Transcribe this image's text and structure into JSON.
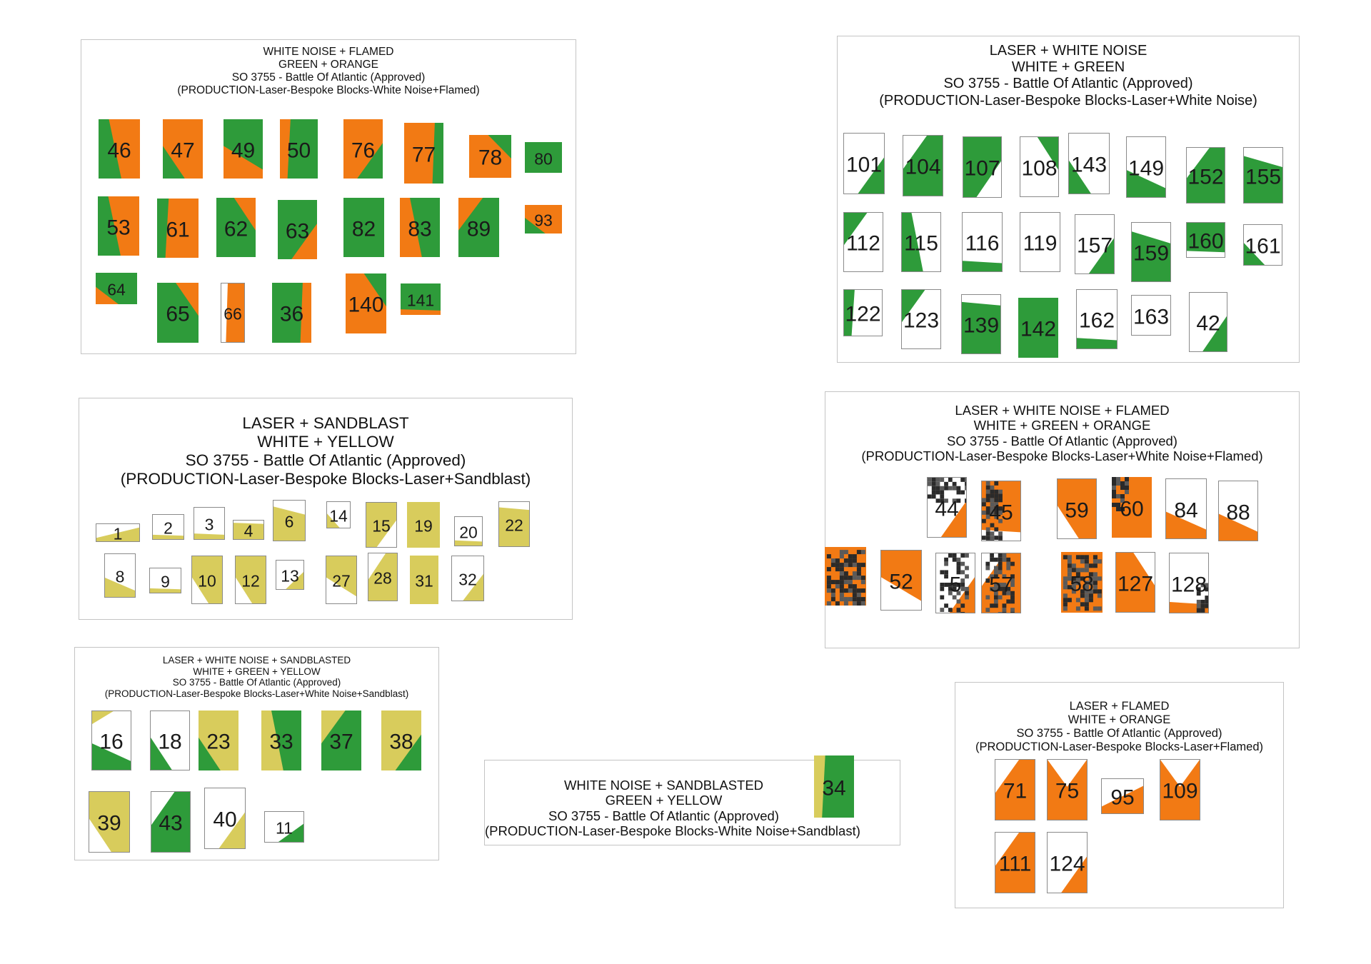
{
  "colors": {
    "green": "#2e9b3a",
    "orange": "#f27a14",
    "yellow": "#d8cc5c",
    "white": "#ffffff",
    "dark": "#2a2a2a"
  },
  "panels": [
    {
      "key": "wn_flamed",
      "title_lines": [
        "WHITE NOISE + FLAMED",
        "GREEN + ORANGE",
        "SO 3755 - Battle Of Atlantic (Approved)",
        "(PRODUCTION-Laser-Bespoke Blocks-White Noise+Flamed)"
      ],
      "blocks": [
        {
          "label": "46",
          "base": "green",
          "accent": "orange",
          "pattern": "diag-right"
        },
        {
          "label": "47",
          "base": "orange",
          "accent": "green",
          "pattern": "corner-bl"
        },
        {
          "label": "49",
          "base": "green",
          "accent": "orange",
          "pattern": "diag-left"
        },
        {
          "label": "50",
          "base": "green",
          "accent": "orange",
          "pattern": "strip-left"
        },
        {
          "label": "76",
          "base": "orange",
          "accent": "green",
          "pattern": "corner-br"
        },
        {
          "label": "77",
          "base": "orange",
          "accent": "green",
          "pattern": "strip-right"
        },
        {
          "label": "78",
          "base": "orange",
          "accent": "green",
          "pattern": "corner-tr"
        },
        {
          "label": "80",
          "base": "green",
          "accent": "green",
          "pattern": "solid"
        },
        {
          "label": "53",
          "base": "green",
          "accent": "orange",
          "pattern": "diag-right"
        },
        {
          "label": "61",
          "base": "orange",
          "accent": "green",
          "pattern": "strip-left"
        },
        {
          "label": "62",
          "base": "green",
          "accent": "orange",
          "pattern": "corner-tr"
        },
        {
          "label": "63",
          "base": "green",
          "accent": "orange",
          "pattern": "corner-br"
        },
        {
          "label": "82",
          "base": "green",
          "accent": "green",
          "pattern": "solid"
        },
        {
          "label": "83",
          "base": "orange",
          "accent": "green",
          "pattern": "diag-right"
        },
        {
          "label": "89",
          "base": "green",
          "accent": "orange",
          "pattern": "corner-tl"
        },
        {
          "label": "93",
          "base": "orange",
          "accent": "green",
          "pattern": "corner-bl"
        },
        {
          "label": "64",
          "base": "green",
          "accent": "orange",
          "pattern": "corner-bl"
        },
        {
          "label": "65",
          "base": "green",
          "accent": "orange",
          "pattern": "corner-tr"
        },
        {
          "label": "66",
          "base": "orange",
          "accent": "white",
          "pattern": "strip-left"
        },
        {
          "label": "36",
          "base": "green",
          "accent": "orange",
          "pattern": "strip-right"
        },
        {
          "label": "140",
          "base": "orange",
          "accent": "green",
          "pattern": "corner-tr"
        },
        {
          "label": "141",
          "base": "green",
          "accent": "orange",
          "pattern": "strip-bottom"
        }
      ]
    },
    {
      "key": "laser_wn",
      "title_lines": [
        "LASER + WHITE NOISE",
        "WHITE + GREEN",
        "SO 3755 - Battle Of Atlantic (Approved)",
        "(PRODUCTION-Laser-Bespoke Blocks-Laser+White Noise)"
      ],
      "blocks": [
        {
          "label": "101",
          "base": "white",
          "accent": "green",
          "pattern": "corner-br"
        },
        {
          "label": "104",
          "base": "green",
          "accent": "white",
          "pattern": "corner-tl"
        },
        {
          "label": "107",
          "base": "green",
          "accent": "white",
          "pattern": "corner-br"
        },
        {
          "label": "108",
          "base": "white",
          "accent": "green",
          "pattern": "corner-tr"
        },
        {
          "label": "143",
          "base": "white",
          "accent": "green",
          "pattern": "corner-bl"
        },
        {
          "label": "149",
          "base": "white",
          "accent": "green",
          "pattern": "diag-bottom"
        },
        {
          "label": "152",
          "base": "green",
          "accent": "white",
          "pattern": "corner-tl"
        },
        {
          "label": "155",
          "base": "green",
          "accent": "white",
          "pattern": "diag-top"
        },
        {
          "label": "112",
          "base": "white",
          "accent": "green",
          "pattern": "corner-tl"
        },
        {
          "label": "115",
          "base": "green",
          "accent": "white",
          "pattern": "diag-right"
        },
        {
          "label": "116",
          "base": "white",
          "accent": "green",
          "pattern": "strip-bottom"
        },
        {
          "label": "119",
          "base": "white",
          "accent": "white",
          "pattern": "solid"
        },
        {
          "label": "157",
          "base": "white",
          "accent": "green",
          "pattern": "corner-br"
        },
        {
          "label": "159",
          "base": "green",
          "accent": "white",
          "pattern": "diag-top"
        },
        {
          "label": "160",
          "base": "green",
          "accent": "white",
          "pattern": "strip-bottom"
        },
        {
          "label": "161",
          "base": "white",
          "accent": "green",
          "pattern": "corner-bl"
        },
        {
          "label": "122",
          "base": "white",
          "accent": "green",
          "pattern": "strip-left"
        },
        {
          "label": "123",
          "base": "white",
          "accent": "green",
          "pattern": "corner-tl"
        },
        {
          "label": "139",
          "base": "green",
          "accent": "white",
          "pattern": "strip-top"
        },
        {
          "label": "142",
          "base": "green",
          "accent": "green",
          "pattern": "solid"
        },
        {
          "label": "162",
          "base": "white",
          "accent": "green",
          "pattern": "strip-bottom"
        },
        {
          "label": "163",
          "base": "white",
          "accent": "white",
          "pattern": "solid"
        },
        {
          "label": "42",
          "base": "white",
          "accent": "green",
          "pattern": "corner-br"
        }
      ]
    },
    {
      "key": "laser_sandblast",
      "title_lines": [
        "LASER + SANDBLAST",
        "WHITE + YELLOW",
        "SO 3755 - Battle Of Atlantic (Approved)",
        "(PRODUCTION-Laser-Bespoke Blocks-Laser+Sandblast)"
      ],
      "blocks": [
        {
          "label": "1",
          "base": "white",
          "accent": "yellow",
          "pattern": "wedge"
        },
        {
          "label": "2",
          "base": "white",
          "accent": "yellow",
          "pattern": "strip-bottom"
        },
        {
          "label": "3",
          "base": "white",
          "accent": "yellow",
          "pattern": "strip-bottom"
        },
        {
          "label": "4",
          "base": "yellow",
          "accent": "white",
          "pattern": "strip-top"
        },
        {
          "label": "6",
          "base": "yellow",
          "accent": "white",
          "pattern": "diag-top"
        },
        {
          "label": "14",
          "base": "white",
          "accent": "yellow",
          "pattern": "corner-bl"
        },
        {
          "label": "15",
          "base": "yellow",
          "accent": "white",
          "pattern": "corner-br"
        },
        {
          "label": "19",
          "base": "yellow",
          "accent": "yellow",
          "pattern": "solid"
        },
        {
          "label": "20",
          "base": "white",
          "accent": "yellow",
          "pattern": "strip-bottom"
        },
        {
          "label": "22",
          "base": "yellow",
          "accent": "white",
          "pattern": "strip-top"
        },
        {
          "label": "8",
          "base": "white",
          "accent": "yellow",
          "pattern": "diag-bottom"
        },
        {
          "label": "9",
          "base": "white",
          "accent": "yellow",
          "pattern": "strip-bottom"
        },
        {
          "label": "10",
          "base": "yellow",
          "accent": "white",
          "pattern": "corner-bl"
        },
        {
          "label": "12",
          "base": "yellow",
          "accent": "white",
          "pattern": "corner-bl"
        },
        {
          "label": "13",
          "base": "white",
          "accent": "yellow",
          "pattern": "corner-br"
        },
        {
          "label": "27",
          "base": "yellow",
          "accent": "white",
          "pattern": "diag-left"
        },
        {
          "label": "28",
          "base": "yellow",
          "accent": "white",
          "pattern": "corner-tl"
        },
        {
          "label": "31",
          "base": "yellow",
          "accent": "yellow",
          "pattern": "solid"
        },
        {
          "label": "32",
          "base": "white",
          "accent": "yellow",
          "pattern": "corner-br"
        }
      ]
    },
    {
      "key": "laser_wn_flamed",
      "title_lines": [
        "LASER + WHITE NOISE + FLAMED",
        "WHITE + GREEN + ORANGE",
        "SO 3755 - Battle Of Atlantic (Approved)",
        "(PRODUCTION-Laser-Bespoke Blocks-Laser+White Noise+Flamed)"
      ],
      "blocks": [
        {
          "label": "44",
          "base": "white",
          "accent": "orange",
          "pattern": "corner-br",
          "noise": "top"
        },
        {
          "label": "45",
          "base": "orange",
          "accent": "white",
          "pattern": "strip-bottom",
          "noise": "left"
        },
        {
          "label": "59",
          "base": "orange",
          "accent": "white",
          "pattern": "corner-bl"
        },
        {
          "label": "60",
          "base": "orange",
          "accent": "orange",
          "pattern": "solid",
          "noise": "corner"
        },
        {
          "label": "84",
          "base": "white",
          "accent": "orange",
          "pattern": "diag-bottom"
        },
        {
          "label": "88",
          "base": "white",
          "accent": "orange",
          "pattern": "diag-bottom"
        },
        {
          "label": "",
          "base": "orange",
          "accent": "orange",
          "pattern": "solid",
          "noise": "full"
        },
        {
          "label": "52",
          "base": "orange",
          "accent": "white",
          "pattern": "diag-left"
        },
        {
          "label": "5",
          "base": "white",
          "accent": "orange",
          "pattern": "corner-br",
          "noise": "band"
        },
        {
          "label": "57",
          "base": "orange",
          "accent": "white",
          "pattern": "corner-tl",
          "noise": "band"
        },
        {
          "label": "58",
          "base": "orange",
          "accent": "orange",
          "pattern": "solid",
          "noise": "full"
        },
        {
          "label": "127",
          "base": "orange",
          "accent": "white",
          "pattern": "corner-tr"
        },
        {
          "label": "128",
          "base": "white",
          "accent": "orange",
          "pattern": "strip-bottom",
          "noise": "right"
        }
      ]
    },
    {
      "key": "laser_wn_sandblasted",
      "title_lines": [
        "LASER + WHITE NOISE + SANDBLASTED",
        "WHITE + GREEN + YELLOW",
        "SO 3755 - Battle Of Atlantic (Approved)",
        "(PRODUCTION-Laser-Bespoke Blocks-Laser+White Noise+Sandblast)"
      ],
      "blocks": [
        {
          "label": "16",
          "base": "white",
          "accent": "green",
          "pattern": "diag-bottom",
          "accent2": "yellow"
        },
        {
          "label": "18",
          "base": "white",
          "accent": "green",
          "pattern": "corner-bl"
        },
        {
          "label": "23",
          "base": "yellow",
          "accent": "green",
          "pattern": "corner-bl"
        },
        {
          "label": "33",
          "base": "yellow",
          "accent": "green",
          "pattern": "diag-right"
        },
        {
          "label": "37",
          "base": "green",
          "accent": "yellow",
          "pattern": "corner-tl"
        },
        {
          "label": "38",
          "base": "yellow",
          "accent": "green",
          "pattern": "corner-br"
        },
        {
          "label": "39",
          "base": "yellow",
          "accent": "white",
          "pattern": "corner-bl"
        },
        {
          "label": "43",
          "base": "green",
          "accent": "white",
          "pattern": "corner-tl"
        },
        {
          "label": "40",
          "base": "white",
          "accent": "yellow",
          "pattern": "corner-br"
        },
        {
          "label": "11",
          "base": "white",
          "accent": "green",
          "pattern": "corner-br"
        }
      ]
    },
    {
      "key": "wn_sandblasted",
      "title_lines": [
        "WHITE NOISE + SANDBLASTED",
        "GREEN + YELLOW",
        "SO 3755 - Battle Of Atlantic (Approved)",
        "(PRODUCTION-Laser-Bespoke Blocks-White Noise+Sandblast)"
      ],
      "blocks": [
        {
          "label": "34",
          "base": "green",
          "accent": "yellow",
          "pattern": "strip-left"
        }
      ]
    },
    {
      "key": "laser_flamed",
      "title_lines": [
        "LASER + FLAMED",
        "WHITE + ORANGE",
        "SO 3755 - Battle Of Atlantic (Approved)",
        "(PRODUCTION-Laser-Bespoke Blocks-Laser+Flamed)"
      ],
      "blocks": [
        {
          "label": "71",
          "base": "orange",
          "accent": "white",
          "pattern": "corner-tl"
        },
        {
          "label": "75",
          "base": "orange",
          "accent": "white",
          "pattern": "notch-top"
        },
        {
          "label": "95",
          "base": "white",
          "accent": "orange",
          "pattern": "wedge"
        },
        {
          "label": "109",
          "base": "orange",
          "accent": "white",
          "pattern": "notch-top"
        },
        {
          "label": "111",
          "base": "orange",
          "accent": "white",
          "pattern": "corner-tl"
        },
        {
          "label": "124",
          "base": "white",
          "accent": "orange",
          "pattern": "corner-br"
        }
      ]
    }
  ]
}
